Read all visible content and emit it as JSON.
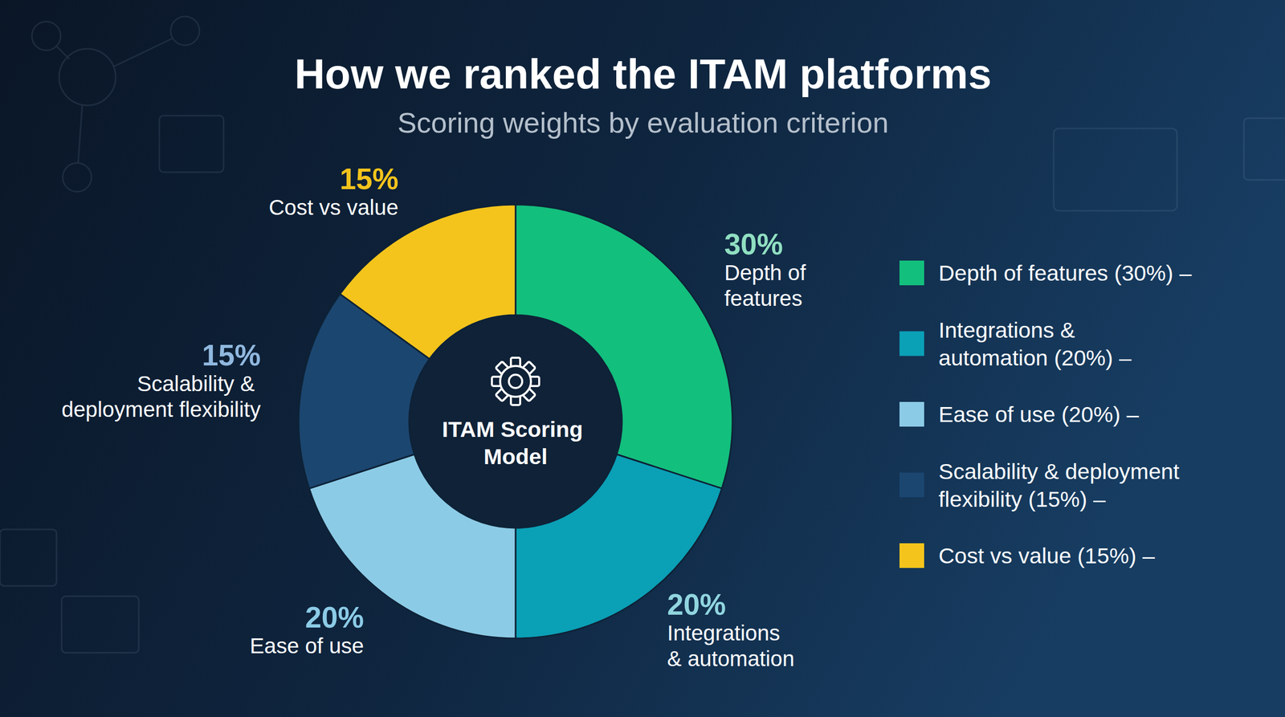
{
  "chart_data": {
    "type": "pie",
    "title": "How we ranked the ITAM platforms",
    "subtitle": "Scoring weights by evaluation criterion",
    "center_label": "ITAM Scoring Model",
    "categories": [
      "Depth of features",
      "Integrations & automation",
      "Ease of use",
      "Scalability & deployment flexibility",
      "Cost vs value"
    ],
    "values": [
      30,
      20,
      20,
      15,
      15
    ],
    "value_labels": [
      "30%",
      "20%",
      "20%",
      "15%",
      "15%"
    ],
    "colors": [
      "#13bf7d",
      "#0aa0b6",
      "#8ccbe6",
      "#1b4670",
      "#f4c41c"
    ],
    "data_labels": true,
    "legend": "right",
    "legend_labels": [
      "Depth of features (30%) –",
      "Integrations & automation (20%) –",
      "Ease of use (20%) –",
      "Scalability & deployment flexibility (15%) –",
      "Cost vs value (15%) –"
    ]
  }
}
